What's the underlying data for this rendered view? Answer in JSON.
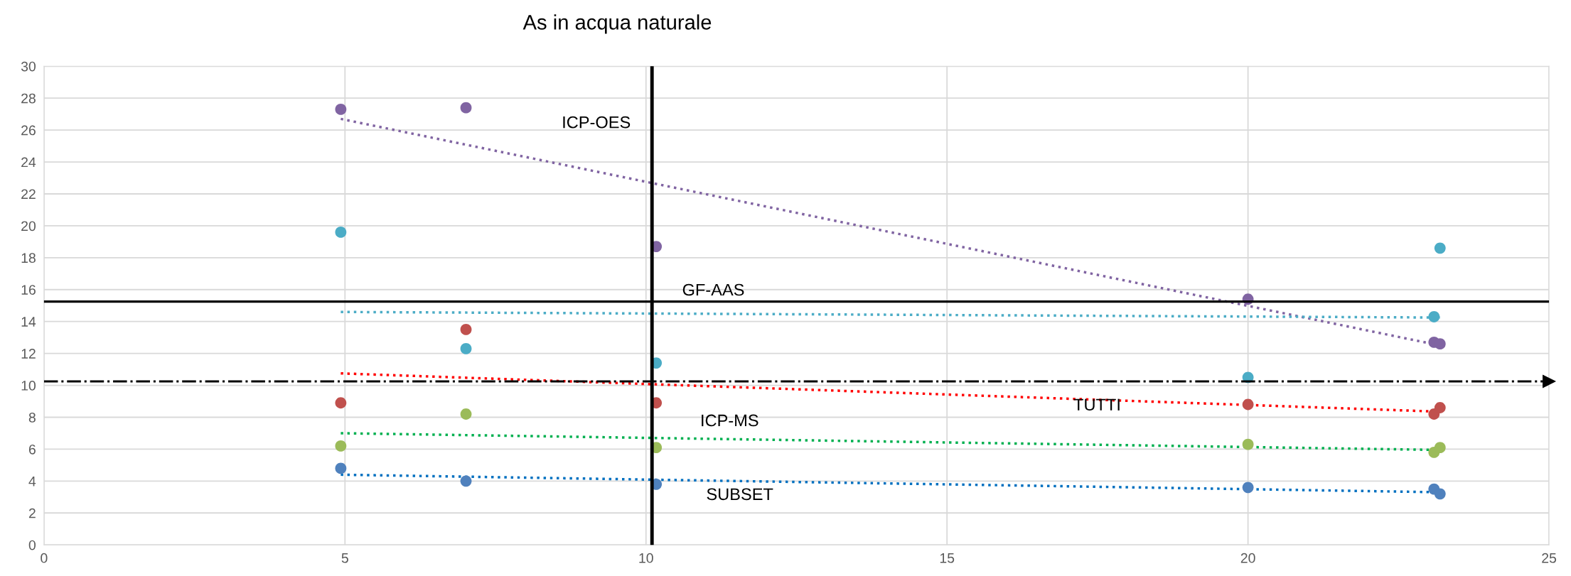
{
  "chart_data": {
    "type": "scatter",
    "title": "As in acqua naturale",
    "series": [
      {
        "color": "#8064a2",
        "x": [
          4.93,
          7.01,
          10.17,
          20,
          23.09,
          23.19
        ],
        "values": [
          27.3,
          27.4,
          18.7,
          15.4,
          12.7,
          12.6
        ]
      },
      {
        "color": "#4bacc6",
        "x": [
          4.93,
          7.01,
          10.17,
          20,
          23.09,
          23.19
        ],
        "values": [
          19.6,
          12.3,
          11.4,
          10.5,
          14.3,
          18.6
        ]
      },
      {
        "color": "#c0504d",
        "x": [
          4.93,
          7.01,
          10.17,
          20,
          23.09,
          23.19
        ],
        "values": [
          8.9,
          13.5,
          8.9,
          8.8,
          8.2,
          8.6
        ]
      },
      {
        "color": "#9bbb59",
        "x": [
          4.93,
          7.01,
          10.17,
          20,
          23.09,
          23.19
        ],
        "values": [
          6.2,
          8.2,
          6.1,
          6.3,
          5.8,
          6.1
        ]
      },
      {
        "color": "#4f81bd",
        "x": [
          4.93,
          7.01,
          10.17,
          20,
          23.09,
          23.19
        ],
        "values": [
          4.8,
          4.0,
          3.8,
          3.6,
          3.5,
          3.2
        ]
      },
      {
        "type": "line",
        "marker": "none",
        "line_style": "dotted",
        "color": "#8064a2",
        "x": [
          4.93,
          23.19
        ],
        "values": [
          26.7,
          12.5
        ]
      },
      {
        "type": "line",
        "marker": "none",
        "line_style": "dotted",
        "color": "#4bacc6",
        "x": [
          4.93,
          23.19
        ],
        "values": [
          14.6,
          14.25
        ]
      },
      {
        "type": "line",
        "marker": "none",
        "line_style": "dotted",
        "color": "#ff0000",
        "x": [
          4.93,
          23.19
        ],
        "values": [
          10.75,
          8.35
        ]
      },
      {
        "type": "line",
        "marker": "none",
        "line_style": "dotted",
        "color": "#00b050",
        "x": [
          4.93,
          23.19
        ],
        "values": [
          7.0,
          5.95
        ]
      },
      {
        "type": "line",
        "marker": "none",
        "line_style": "dotted",
        "color": "#0070c0",
        "x": [
          4.93,
          23.19
        ],
        "values": [
          4.4,
          3.3
        ]
      }
    ],
    "annotations": [
      "ICP-OES",
      "GF-AAS",
      "TUTTI",
      "ICP-MS",
      "SUBSET"
    ],
    "ref_lines": [
      {
        "axis": "y",
        "value": 15.25,
        "color": "#000000",
        "line_style": "solid"
      },
      {
        "axis": "y",
        "value": 10.25,
        "color": "#000000",
        "line_style": "dashdot"
      },
      {
        "axis": "x",
        "value": 10.1,
        "color": "#000000",
        "line_style": "solid"
      }
    ],
    "xlim": [
      0,
      25
    ],
    "xticks": [
      0,
      5,
      10,
      15,
      20,
      25
    ],
    "ylim": [
      0,
      30
    ],
    "yticks": [
      0,
      2,
      4,
      6,
      8,
      10,
      12,
      14,
      16,
      18,
      20,
      22,
      24,
      26,
      28,
      30
    ],
    "grid": true,
    "marker": "circle"
  }
}
